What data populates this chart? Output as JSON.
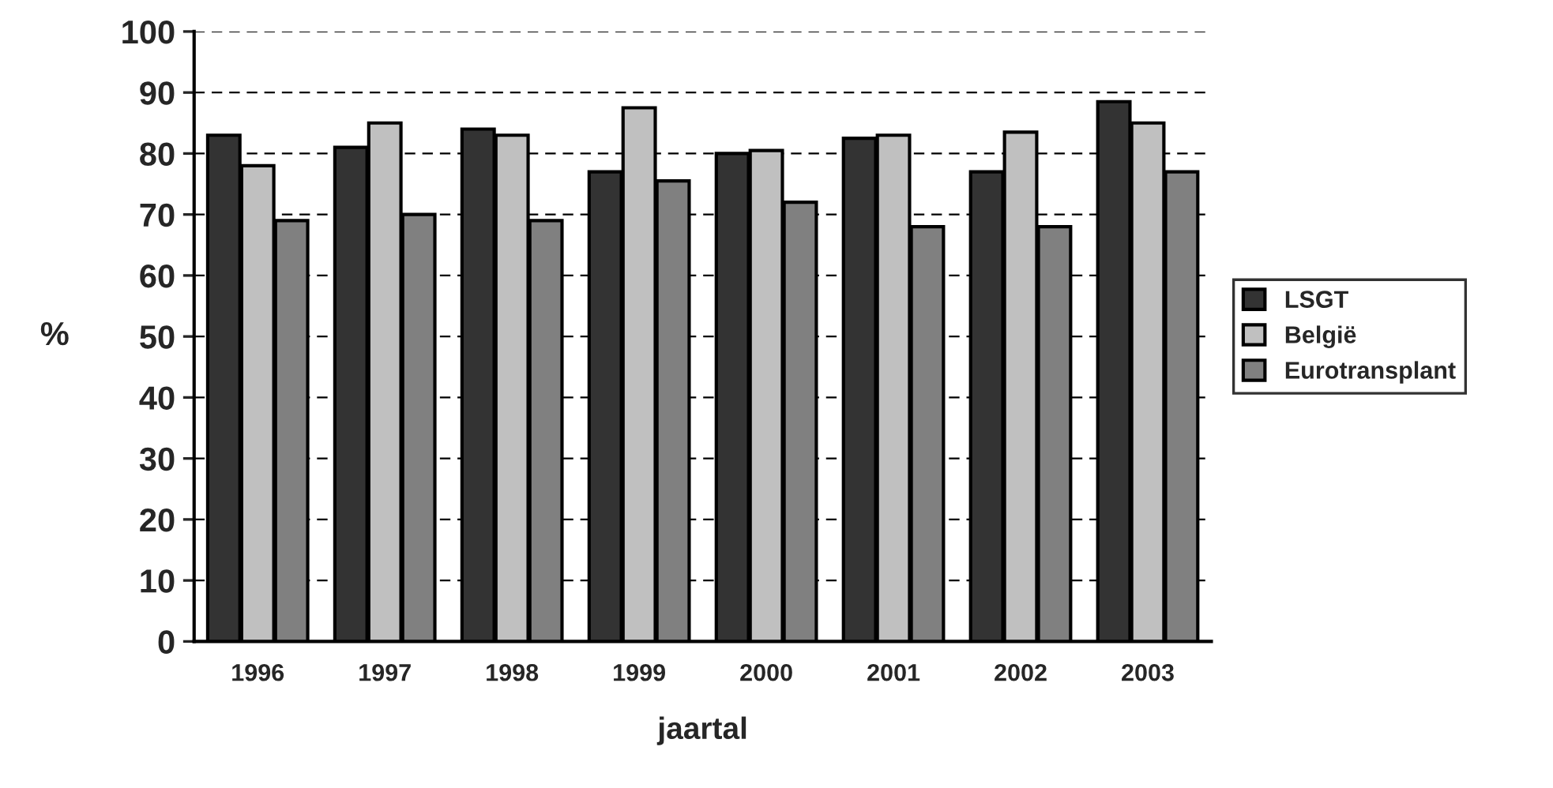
{
  "chart_data": {
    "type": "bar",
    "xlabel": "jaartal",
    "ylabel": "%",
    "categories": [
      "1996",
      "1997",
      "1998",
      "1999",
      "2000",
      "2001",
      "2002",
      "2003"
    ],
    "series": [
      {
        "name": "LSGT",
        "color": "#333333",
        "values": [
          83,
          81,
          84,
          77,
          80,
          82.5,
          77,
          88.5
        ]
      },
      {
        "name": "België",
        "color": "#c0c0c0",
        "values": [
          78,
          85,
          83,
          87.5,
          80.5,
          83,
          83.5,
          85
        ]
      },
      {
        "name": "Eurotransplant",
        "color": "#808080",
        "values": [
          69,
          70,
          69,
          75.5,
          72,
          68,
          68,
          77
        ]
      }
    ],
    "ylim": [
      0,
      100
    ],
    "yticks": [
      0,
      10,
      20,
      30,
      40,
      50,
      60,
      70,
      80,
      90,
      100
    ],
    "grid": "y",
    "legend": "right"
  }
}
